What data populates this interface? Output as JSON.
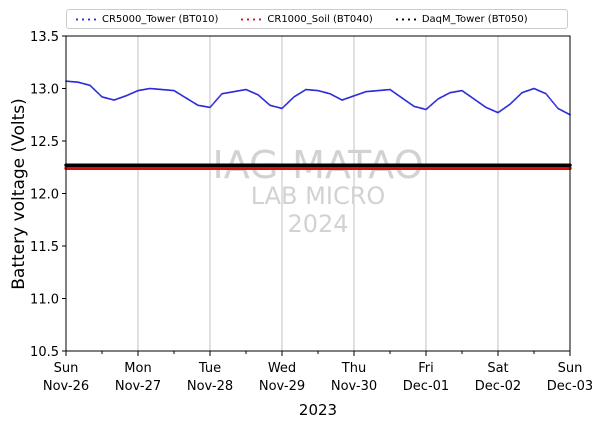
{
  "chart_data": {
    "type": "scatter",
    "title": "",
    "xlabel": "2023",
    "ylabel": "Battery voltage (Volts)",
    "ylim": [
      10.5,
      13.5
    ],
    "yticks": [
      "10.5",
      "11.0",
      "11.5",
      "12.0",
      "12.5",
      "13.0",
      "13.5"
    ],
    "xrange_days": [
      0,
      7
    ],
    "xticks": [
      {
        "day": "Sun",
        "date": "Nov-26"
      },
      {
        "day": "Mon",
        "date": "Nov-27"
      },
      {
        "day": "Tue",
        "date": "Nov-28"
      },
      {
        "day": "Wed",
        "date": "Nov-29"
      },
      {
        "day": "Thu",
        "date": "Nov-30"
      },
      {
        "day": "Fri",
        "date": "Dec-01"
      },
      {
        "day": "Sat",
        "date": "Dec-02"
      },
      {
        "day": "Sun",
        "date": "Dec-03"
      }
    ],
    "grid": "vertical",
    "legend_placement": "top",
    "watermark": [
      "IAG-MATAO",
      "LAB MICRO",
      "2024"
    ],
    "series": [
      {
        "name": "CR5000_Tower (BT010)",
        "color": "#2a2ad8",
        "marker": "dot",
        "x": [
          "2023-11-26 00:00",
          "2023-11-26 04:00",
          "2023-11-26 08:00",
          "2023-11-26 12:00",
          "2023-11-26 16:00",
          "2023-11-26 20:00",
          "2023-11-27 00:00",
          "2023-11-27 04:00",
          "2023-11-27 08:00",
          "2023-11-27 12:00",
          "2023-11-27 16:00",
          "2023-11-27 20:00",
          "2023-11-28 00:00",
          "2023-11-28 04:00",
          "2023-11-28 08:00",
          "2023-11-28 12:00",
          "2023-11-28 16:00",
          "2023-11-28 20:00",
          "2023-11-29 00:00",
          "2023-11-29 04:00",
          "2023-11-29 08:00",
          "2023-11-29 12:00",
          "2023-11-29 16:00",
          "2023-11-29 20:00",
          "2023-11-30 00:00",
          "2023-11-30 04:00",
          "2023-11-30 08:00",
          "2023-11-30 12:00",
          "2023-11-30 16:00",
          "2023-11-30 20:00",
          "2023-12-01 00:00",
          "2023-12-01 04:00",
          "2023-12-01 08:00",
          "2023-12-01 12:00",
          "2023-12-01 16:00",
          "2023-12-01 20:00",
          "2023-12-02 00:00",
          "2023-12-02 04:00",
          "2023-12-02 08:00",
          "2023-12-02 12:00",
          "2023-12-02 16:00",
          "2023-12-02 20:00",
          "2023-12-03 00:00"
        ],
        "y": [
          13.07,
          13.06,
          13.03,
          12.92,
          12.89,
          12.93,
          12.98,
          13.0,
          12.99,
          12.98,
          12.91,
          12.84,
          12.82,
          12.95,
          12.97,
          12.99,
          12.94,
          12.84,
          12.81,
          12.92,
          12.99,
          12.98,
          12.95,
          12.89,
          12.93,
          12.97,
          12.98,
          12.99,
          12.91,
          12.83,
          12.8,
          12.9,
          12.96,
          12.98,
          12.9,
          12.82,
          12.77,
          12.85,
          12.96,
          13.0,
          12.95,
          12.81,
          12.75
        ]
      },
      {
        "name": "CR1000_Soil (BT040)",
        "color": "#d81010",
        "marker": "dot",
        "x": [
          "2023-11-26 00:00",
          "2023-11-27 00:00",
          "2023-11-28 00:00",
          "2023-11-29 00:00",
          "2023-11-30 00:00",
          "2023-12-01 00:00",
          "2023-12-02 00:00",
          "2023-12-03 00:00"
        ],
        "y": [
          12.24,
          12.24,
          12.24,
          12.24,
          12.24,
          12.24,
          12.24,
          12.24
        ]
      },
      {
        "name": "DaqM_Tower (BT050)",
        "color": "#000000",
        "marker": "dot",
        "x": [
          "2023-11-26 00:00",
          "2023-11-27 00:00",
          "2023-11-28 00:00",
          "2023-11-29 00:00",
          "2023-11-30 00:00",
          "2023-12-01 00:00",
          "2023-12-02 00:00",
          "2023-12-03 00:00"
        ],
        "y": [
          12.27,
          12.27,
          12.27,
          12.27,
          12.27,
          12.27,
          12.27,
          12.27
        ]
      }
    ]
  }
}
